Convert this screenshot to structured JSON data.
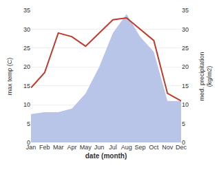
{
  "chart_data": {
    "type": "line",
    "categories": [
      "Jan",
      "Feb",
      "Mar",
      "Apr",
      "May",
      "Jun",
      "Jul",
      "Aug",
      "Sep",
      "Oct",
      "Nov",
      "Dec"
    ],
    "xlabel": "date (month)",
    "ylabel": "max temp (C)",
    "y2label": "med. precipitation\n(kg/m2)",
    "ylim": [
      0,
      35
    ],
    "yticks": [
      0,
      5,
      10,
      15,
      20,
      25,
      30,
      35
    ],
    "y2lim": [
      0,
      35
    ],
    "y2ticks": [
      0,
      5,
      10,
      15,
      20,
      25,
      30,
      35
    ],
    "grid": true,
    "series": [
      {
        "type": "area",
        "axis": "y2",
        "color": "#b8c4e8",
        "values": [
          7.5,
          8.0,
          8.0,
          9.0,
          13.0,
          20.0,
          29.0,
          34.0,
          28.0,
          24.0,
          11.0,
          11.0
        ]
      },
      {
        "type": "line",
        "color": "#c0392b",
        "values": [
          14.5,
          18.5,
          29.0,
          28.0,
          25.5,
          29.0,
          32.5,
          33.0,
          30.0,
          27.0,
          13.0,
          11.0
        ]
      }
    ]
  }
}
